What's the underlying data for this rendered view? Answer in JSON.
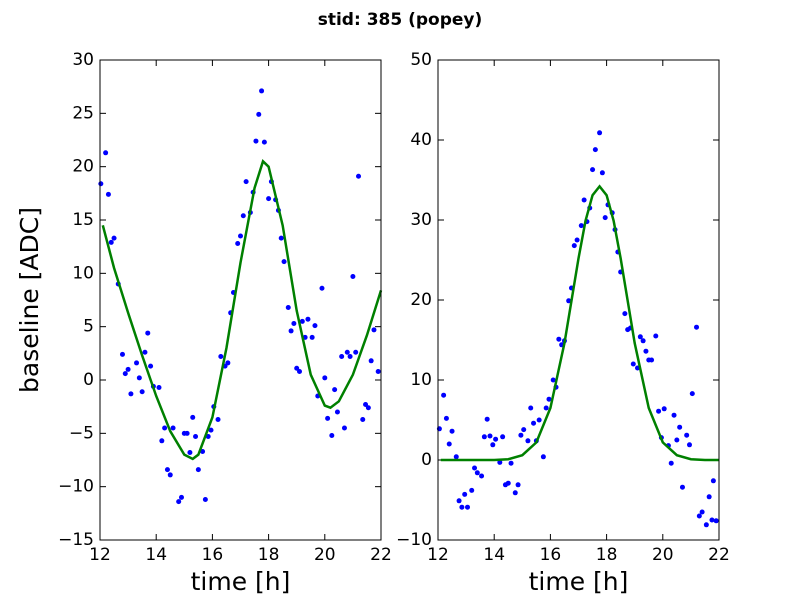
{
  "title": "stid: 385 (popey)",
  "chart_data": [
    {
      "type": "scatter",
      "xlabel": "time [h]",
      "ylabel": "baseline [ADC]",
      "xlim": [
        12,
        22
      ],
      "ylim": [
        -15,
        30
      ],
      "xticks": [
        12,
        14,
        16,
        18,
        20,
        22
      ],
      "yticks": [
        {
          "value": -15,
          "label": "−15"
        },
        {
          "value": -10,
          "label": "−10"
        },
        {
          "value": -5,
          "label": "−5"
        },
        0,
        5,
        10,
        15,
        20,
        25,
        30
      ],
      "series": [
        {
          "mode": "markers",
          "color": "#0000ff",
          "x": [
            12.03,
            12.2,
            12.3,
            12.4,
            12.5,
            12.65,
            12.8,
            12.9,
            13.0,
            13.1,
            13.3,
            13.4,
            13.5,
            13.6,
            13.7,
            13.8,
            13.9,
            14.1,
            14.2,
            14.3,
            14.4,
            14.5,
            14.6,
            14.8,
            14.9,
            15.0,
            15.1,
            15.2,
            15.3,
            15.4,
            15.5,
            15.65,
            15.75,
            15.85,
            15.95,
            16.05,
            16.2,
            16.3,
            16.45,
            16.55,
            16.65,
            16.75,
            16.9,
            17.0,
            17.1,
            17.2,
            17.35,
            17.45,
            17.55,
            17.65,
            17.75,
            17.85,
            18.0,
            18.1,
            18.25,
            18.35,
            18.45,
            18.55,
            18.7,
            18.8,
            18.9,
            19.0,
            19.1,
            19.2,
            19.3,
            19.4,
            19.55,
            19.65,
            19.75,
            19.9,
            20.0,
            20.1,
            20.25,
            20.35,
            20.45,
            20.6,
            20.7,
            20.8,
            20.9,
            21.0,
            21.1,
            21.2,
            21.35,
            21.45,
            21.55,
            21.65,
            21.75,
            21.9
          ],
          "values": [
            18.4,
            21.3,
            17.4,
            12.9,
            13.3,
            9.0,
            2.4,
            0.6,
            1.0,
            -1.3,
            1.6,
            0.2,
            -1.1,
            2.6,
            4.4,
            1.3,
            -0.6,
            -0.7,
            -5.7,
            -4.5,
            -8.4,
            -8.9,
            -4.5,
            -11.4,
            -11.0,
            -5.0,
            -5.0,
            -6.8,
            -3.5,
            -5.3,
            -8.4,
            -6.7,
            -11.2,
            -5.3,
            -4.7,
            -2.5,
            -3.7,
            2.2,
            1.3,
            1.6,
            6.3,
            8.2,
            12.8,
            13.5,
            15.4,
            18.6,
            15.7,
            17.6,
            22.4,
            24.9,
            27.1,
            22.3,
            17.0,
            18.6,
            16.9,
            15.9,
            13.3,
            11.1,
            6.8,
            4.6,
            5.3,
            1.1,
            0.8,
            5.5,
            4.0,
            5.7,
            4.0,
            5.1,
            -1.5,
            8.6,
            0.2,
            -3.6,
            -5.2,
            -0.9,
            -3.0,
            2.2,
            -4.5,
            2.6,
            2.2,
            9.7,
            2.6,
            19.1,
            -3.7,
            -2.3,
            -2.6,
            1.8,
            4.7,
            0.8
          ]
        },
        {
          "mode": "line",
          "color": "#008000",
          "x": [
            12.1,
            12.5,
            13,
            13.5,
            14,
            14.5,
            15,
            15.3,
            15.5,
            16,
            16.5,
            17,
            17.5,
            17.8,
            18,
            18.5,
            19,
            19.5,
            20,
            20.2,
            20.5,
            21,
            21.5,
            22
          ],
          "values": [
            14.5,
            10.5,
            6.3,
            2.3,
            -1.5,
            -4.8,
            -7.0,
            -7.4,
            -7.0,
            -3.5,
            3.0,
            11.0,
            18.0,
            20.5,
            20.0,
            14.5,
            6.5,
            0.5,
            -2.4,
            -2.6,
            -2.0,
            0.5,
            4.2,
            8.4
          ]
        }
      ]
    },
    {
      "type": "scatter",
      "xlabel": "time [h]",
      "xlim": [
        12,
        22
      ],
      "ylim": [
        -10,
        50
      ],
      "xticks": [
        12,
        14,
        16,
        18,
        20,
        22
      ],
      "yticks": [
        {
          "value": -10,
          "label": "−10"
        },
        0,
        10,
        20,
        30,
        40,
        50
      ],
      "series": [
        {
          "mode": "markers",
          "color": "#0000ff",
          "x": [
            12.05,
            12.2,
            12.3,
            12.4,
            12.5,
            12.65,
            12.75,
            12.85,
            12.95,
            13.05,
            13.2,
            13.3,
            13.4,
            13.55,
            13.65,
            13.75,
            13.85,
            13.95,
            14.05,
            14.2,
            14.3,
            14.4,
            14.5,
            14.6,
            14.75,
            14.85,
            14.95,
            15.05,
            15.2,
            15.3,
            15.4,
            15.5,
            15.6,
            15.75,
            15.85,
            15.95,
            16.1,
            16.2,
            16.3,
            16.4,
            16.5,
            16.65,
            16.75,
            16.85,
            16.95,
            17.1,
            17.2,
            17.3,
            17.4,
            17.5,
            17.6,
            17.75,
            17.85,
            17.95,
            18.05,
            18.2,
            18.3,
            18.4,
            18.5,
            18.65,
            18.75,
            18.85,
            18.95,
            19.1,
            19.2,
            19.3,
            19.4,
            19.5,
            19.6,
            19.75,
            19.85,
            19.95,
            20.05,
            20.2,
            20.3,
            20.4,
            20.5,
            20.6,
            20.7,
            20.85,
            20.95,
            21.05,
            21.2,
            21.3,
            21.4,
            21.55,
            21.65,
            21.75,
            21.8,
            21.9
          ],
          "values": [
            3.9,
            8.1,
            5.2,
            2.0,
            3.6,
            0.4,
            -5.1,
            -5.9,
            -4.3,
            -5.9,
            -3.8,
            -1.0,
            -1.6,
            -2.0,
            2.9,
            5.1,
            3.0,
            1.9,
            2.6,
            -0.3,
            2.9,
            -3.1,
            -2.9,
            -0.4,
            -4.1,
            -3.1,
            3.1,
            3.8,
            2.4,
            6.5,
            4.6,
            2.4,
            5.0,
            0.4,
            6.5,
            7.6,
            10.0,
            9.1,
            15.1,
            14.4,
            14.9,
            19.9,
            21.5,
            26.8,
            27.5,
            29.3,
            32.5,
            29.8,
            31.5,
            36.3,
            38.8,
            40.9,
            35.9,
            30.3,
            31.9,
            30.9,
            28.8,
            26.0,
            23.5,
            18.3,
            16.3,
            16.5,
            12.0,
            11.5,
            15.4,
            14.9,
            13.6,
            12.5,
            12.5,
            15.5,
            6.1,
            2.8,
            6.4,
            1.8,
            -0.4,
            5.6,
            2.5,
            4.1,
            -3.4,
            3.1,
            1.9,
            8.3,
            16.6,
            -7.0,
            -6.5,
            -8.1,
            -4.6,
            -7.5,
            -2.6,
            -7.6
          ]
        },
        {
          "mode": "line",
          "color": "#008000",
          "x": [
            12.1,
            13,
            14,
            14.5,
            15,
            15.5,
            16,
            16.5,
            17,
            17.25,
            17.5,
            17.75,
            18,
            18.25,
            18.5,
            19,
            19.5,
            20,
            20.5,
            21,
            21.5,
            22
          ],
          "values": [
            0,
            0,
            0,
            0.1,
            0.6,
            2.2,
            6.5,
            14.6,
            25.2,
            29.9,
            33.1,
            34.2,
            33.1,
            29.9,
            25.2,
            14.6,
            6.5,
            2.2,
            0.6,
            0.1,
            0,
            0
          ]
        }
      ]
    }
  ]
}
